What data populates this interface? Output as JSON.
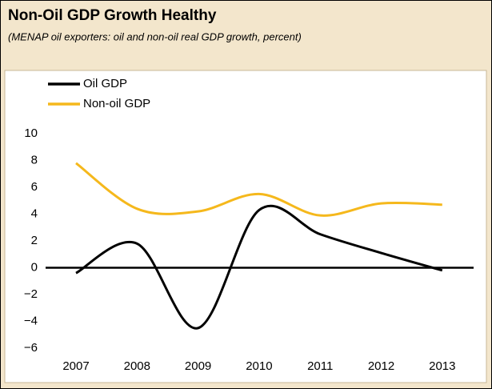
{
  "chart_data": {
    "type": "line",
    "title": "Non-Oil GDP Growth Healthy",
    "subtitle": "(MENAP oil exporters: oil and non-oil real GDP growth, percent)",
    "categories": [
      "2007",
      "2008",
      "2009",
      "2010",
      "2011",
      "2012",
      "2013"
    ],
    "series": [
      {
        "name": "Oil GDP",
        "color": "#000000",
        "values": [
          -0.4,
          1.8,
          -4.5,
          4.3,
          2.5,
          1.1,
          -0.2
        ]
      },
      {
        "name": "Non-oil GDP",
        "color": "#f5b81c",
        "values": [
          7.8,
          4.4,
          4.2,
          5.5,
          3.9,
          4.8,
          4.7
        ]
      }
    ],
    "ylim": [
      -6,
      10
    ],
    "yticks": [
      10,
      8,
      6,
      4,
      2,
      0,
      {
        "value": -2,
        "label": "−2"
      },
      {
        "value": -4,
        "label": "−4"
      },
      {
        "value": -6,
        "label": "−6"
      }
    ],
    "grid": false,
    "legend": "top-left"
  }
}
